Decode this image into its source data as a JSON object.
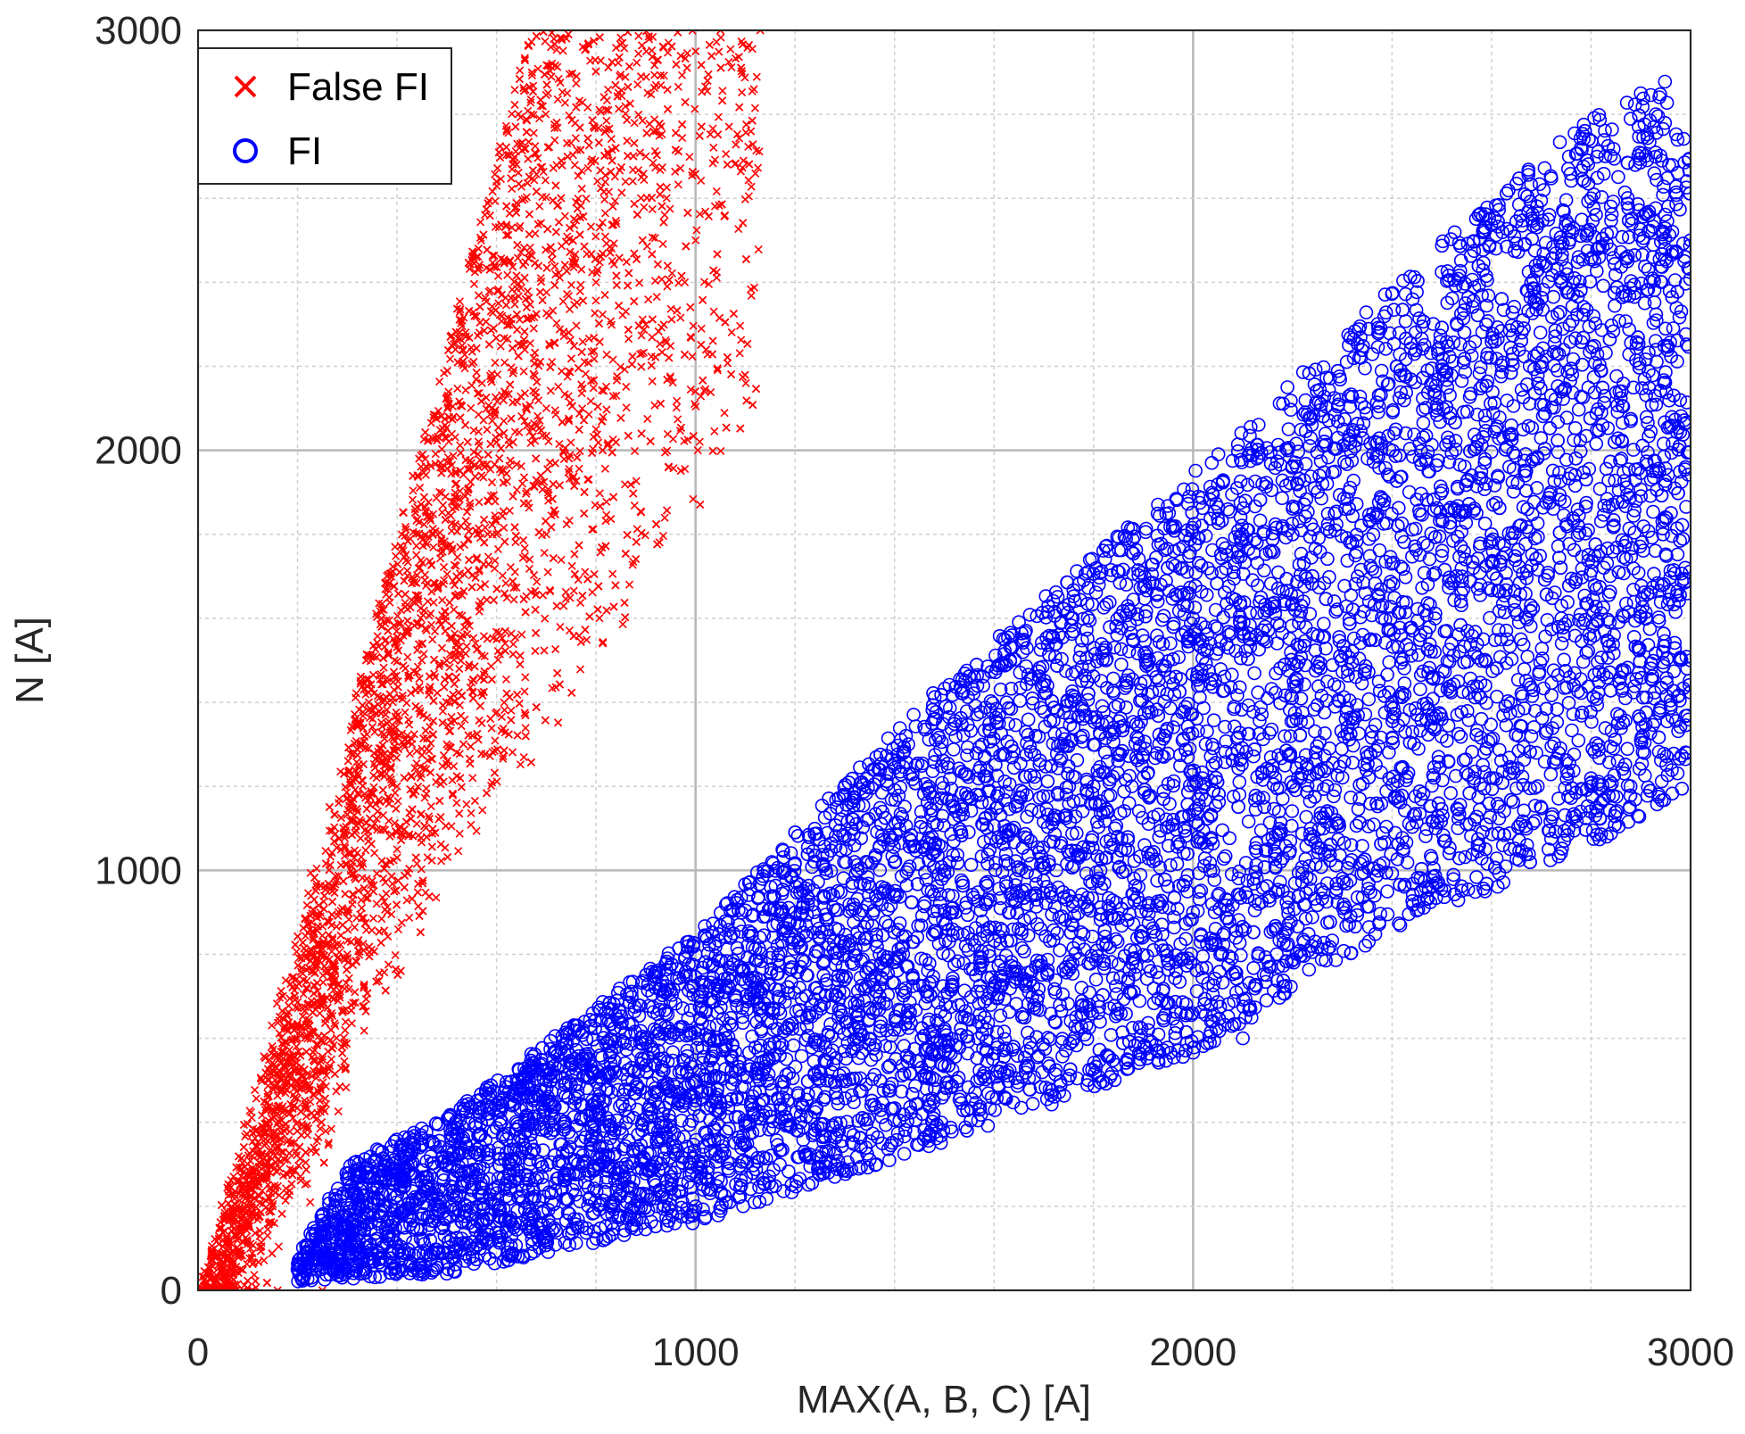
{
  "chart_data": {
    "type": "scatter",
    "title": "",
    "xlabel": "MAX(A, B, C) [A]",
    "ylabel": "N [A]",
    "xlim": [
      0,
      3000
    ],
    "ylim": [
      0,
      3000
    ],
    "x_ticks": [
      0,
      1000,
      2000,
      3000
    ],
    "y_ticks": [
      0,
      1000,
      2000,
      3000
    ],
    "x_tick_labels": [
      "0",
      "1000",
      "2000",
      "3000"
    ],
    "y_tick_labels": [
      "0",
      "1000",
      "2000",
      "3000"
    ],
    "grid": true,
    "minor_grid": true,
    "legend_position": "top-left",
    "series": [
      {
        "name": "False FI",
        "marker": "x",
        "color": "#ff0000",
        "region": {
          "x_range": [
            0,
            1130
          ],
          "y_over_x_ratio_range": [
            1.85,
            4.5
          ],
          "y_max": 3000
        },
        "points": [
          [
            0,
            0
          ],
          [
            100,
            300
          ],
          [
            200,
            600
          ],
          [
            300,
            900
          ],
          [
            400,
            1200
          ],
          [
            500,
            1500
          ],
          [
            600,
            1800
          ],
          [
            700,
            2100
          ],
          [
            800,
            2400
          ],
          [
            900,
            2700
          ],
          [
            1000,
            2950
          ],
          [
            1050,
            3000
          ],
          [
            1130,
            3000
          ],
          [
            1000,
            2500
          ],
          [
            900,
            2300
          ],
          [
            800,
            2050
          ],
          [
            700,
            1800
          ],
          [
            600,
            1550
          ],
          [
            500,
            1300
          ],
          [
            400,
            1050
          ],
          [
            300,
            800
          ],
          [
            250,
            550
          ],
          [
            200,
            400
          ],
          [
            150,
            200
          ],
          [
            60,
            0
          ],
          [
            110,
            0
          ],
          [
            160,
            0
          ],
          [
            250,
            0
          ]
        ]
      },
      {
        "name": "FI",
        "marker": "o",
        "color": "#0000ff",
        "region": {
          "x_range": [
            200,
            3000
          ],
          "y_lower_points": [
            [
              200,
              20
            ],
            [
              500,
              40
            ],
            [
              1000,
              160
            ],
            [
              1500,
              350
            ],
            [
              2000,
              560
            ],
            [
              2400,
              860
            ],
            [
              2800,
              1050
            ],
            [
              3000,
              1200
            ]
          ],
          "y_upper_points": [
            [
              200,
              80
            ],
            [
              300,
              300
            ],
            [
              500,
              420
            ],
            [
              1000,
              850
            ],
            [
              1500,
              1450
            ],
            [
              1800,
              1750
            ],
            [
              2100,
              2050
            ],
            [
              2500,
              2500
            ],
            [
              2800,
              2800
            ],
            [
              2950,
              2880
            ],
            [
              3000,
              2700
            ]
          ]
        },
        "points": [
          [
            200,
            50
          ],
          [
            300,
            100
          ],
          [
            500,
            300
          ],
          [
            700,
            500
          ],
          [
            1000,
            500
          ],
          [
            1000,
            800
          ],
          [
            1200,
            900
          ],
          [
            1500,
            1000
          ],
          [
            1500,
            700
          ],
          [
            1800,
            1200
          ],
          [
            2000,
            900
          ],
          [
            2000,
            1600
          ],
          [
            2200,
            1800
          ],
          [
            2400,
            1400
          ],
          [
            2500,
            2200
          ],
          [
            2600,
            1800
          ],
          [
            2800,
            2600
          ],
          [
            2900,
            2850
          ],
          [
            3000,
            2500
          ],
          [
            3000,
            1500
          ],
          [
            2800,
            1200
          ],
          [
            2100,
            600
          ],
          [
            1000,
            200
          ],
          [
            500,
            40
          ]
        ]
      }
    ]
  }
}
